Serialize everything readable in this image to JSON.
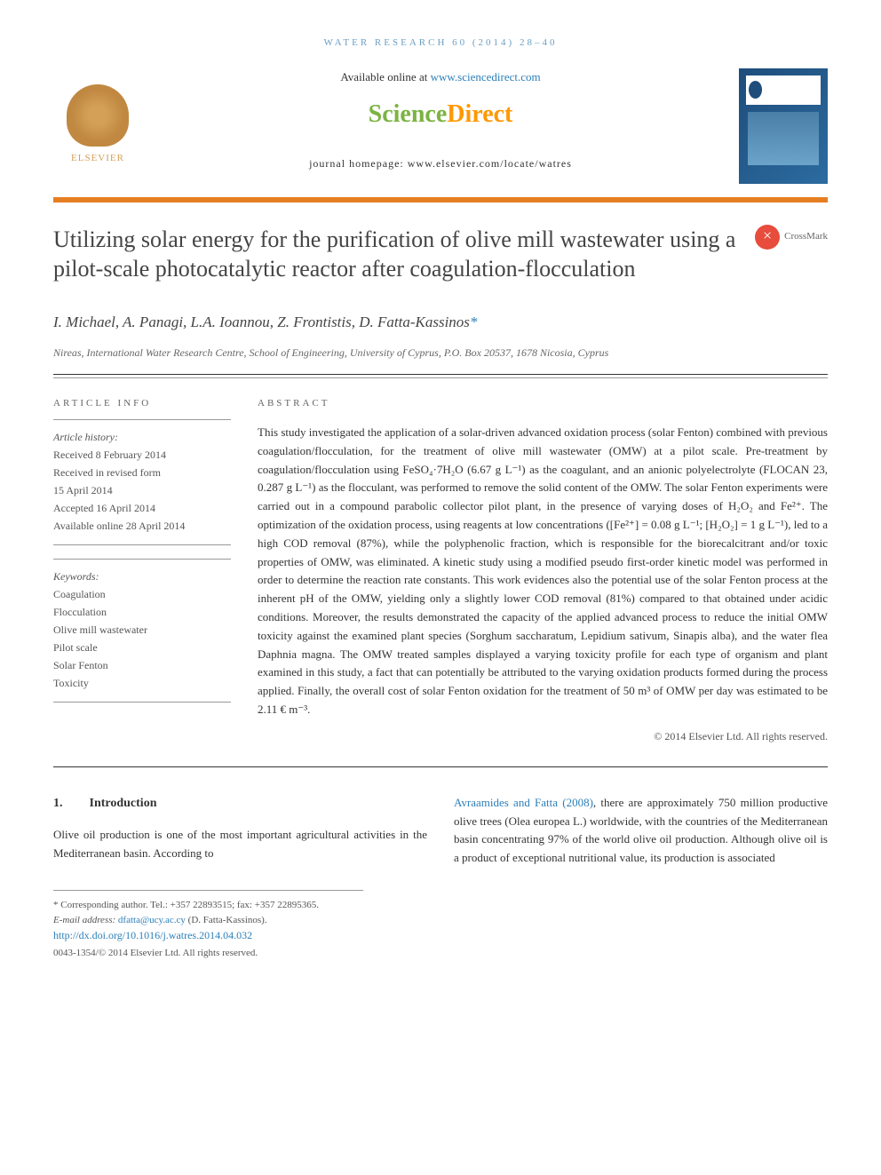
{
  "running_header": "WATER RESEARCH 60 (2014) 28–40",
  "header": {
    "available_online": "Available online at ",
    "sd_url": "www.sciencedirect.com",
    "sd_logo_science": "Science",
    "sd_logo_direct": "Direct",
    "journal_homepage_label": "journal homepage: ",
    "journal_homepage_url": "www.elsevier.com/locate/watres",
    "elsevier_text": "ELSEVIER",
    "journal_cover_iwa": "IWA",
    "journal_cover_title": "WATER RESEARCH"
  },
  "article": {
    "title": "Utilizing solar energy for the purification of olive mill wastewater using a pilot-scale photocatalytic reactor after coagulation-flocculation",
    "crossmark_label": "CrossMark",
    "authors": "I. Michael, A. Panagi, L.A. Ioannou, Z. Frontistis, D. Fatta-Kassinos",
    "corr_marker": "*",
    "affiliation": "Nireas, International Water Research Centre, School of Engineering, University of Cyprus, P.O. Box 20537, 1678 Nicosia, Cyprus"
  },
  "info": {
    "heading": "ARTICLE INFO",
    "history_label": "Article history:",
    "received": "Received 8 February 2014",
    "revised_label": "Received in revised form",
    "revised_date": "15 April 2014",
    "accepted": "Accepted 16 April 2014",
    "available": "Available online 28 April 2014",
    "keywords_label": "Keywords:",
    "keywords": [
      "Coagulation",
      "Flocculation",
      "Olive mill wastewater",
      "Pilot scale",
      "Solar Fenton",
      "Toxicity"
    ]
  },
  "abstract": {
    "heading": "ABSTRACT",
    "text": "This study investigated the application of a solar-driven advanced oxidation process (solar Fenton) combined with previous coagulation/flocculation, for the treatment of olive mill wastewater (OMW) at a pilot scale. Pre-treatment by coagulation/flocculation using FeSO₄·7H₂O (6.67 g L⁻¹) as the coagulant, and an anionic polyelectrolyte (FLOCAN 23, 0.287 g L⁻¹) as the flocculant, was performed to remove the solid content of the OMW. The solar Fenton experiments were carried out in a compound parabolic collector pilot plant, in the presence of varying doses of H₂O₂ and Fe²⁺. The optimization of the oxidation process, using reagents at low concentrations ([Fe²⁺] = 0.08 g L⁻¹; [H₂O₂] = 1 g L⁻¹), led to a high COD removal (87%), while the polyphenolic fraction, which is responsible for the biorecalcitrant and/or toxic properties of OMW, was eliminated. A kinetic study using a modified pseudo first-order kinetic model was performed in order to determine the reaction rate constants. This work evidences also the potential use of the solar Fenton process at the inherent pH of the OMW, yielding only a slightly lower COD removal (81%) compared to that obtained under acidic conditions. Moreover, the results demonstrated the capacity of the applied advanced process to reduce the initial OMW toxicity against the examined plant species (Sorghum saccharatum, Lepidium sativum, Sinapis alba), and the water flea Daphnia magna. The OMW treated samples displayed a varying toxicity profile for each type of organism and plant examined in this study, a fact that can potentially be attributed to the varying oxidation products formed during the process applied. Finally, the overall cost of solar Fenton oxidation for the treatment of 50 m³ of OMW per day was estimated to be 2.11 € m⁻³.",
    "copyright": "© 2014 Elsevier Ltd. All rights reserved."
  },
  "intro": {
    "section_num": "1.",
    "section_title": "Introduction",
    "col1_text": "Olive oil production is one of the most important agricultural activities in the Mediterranean basin. According to ",
    "col2_cite": "Avraamides and Fatta (2008)",
    "col2_text": ", there are approximately 750 million productive olive trees (Olea europea L.) worldwide, with the countries of the Mediterranean basin concentrating 97% of the world olive oil production. Although olive oil is a product of exceptional nutritional value, its production is associated"
  },
  "footnote": {
    "corr_label": "* Corresponding author. Tel.: +357 22893515; fax: +357 22895365.",
    "email_label": "E-mail address: ",
    "email": "dfatta@ucy.ac.cy",
    "email_name": " (D. Fatta-Kassinos).",
    "doi": "http://dx.doi.org/10.1016/j.watres.2014.04.032",
    "issn_copyright": "0043-1354/© 2014 Elsevier Ltd. All rights reserved."
  }
}
